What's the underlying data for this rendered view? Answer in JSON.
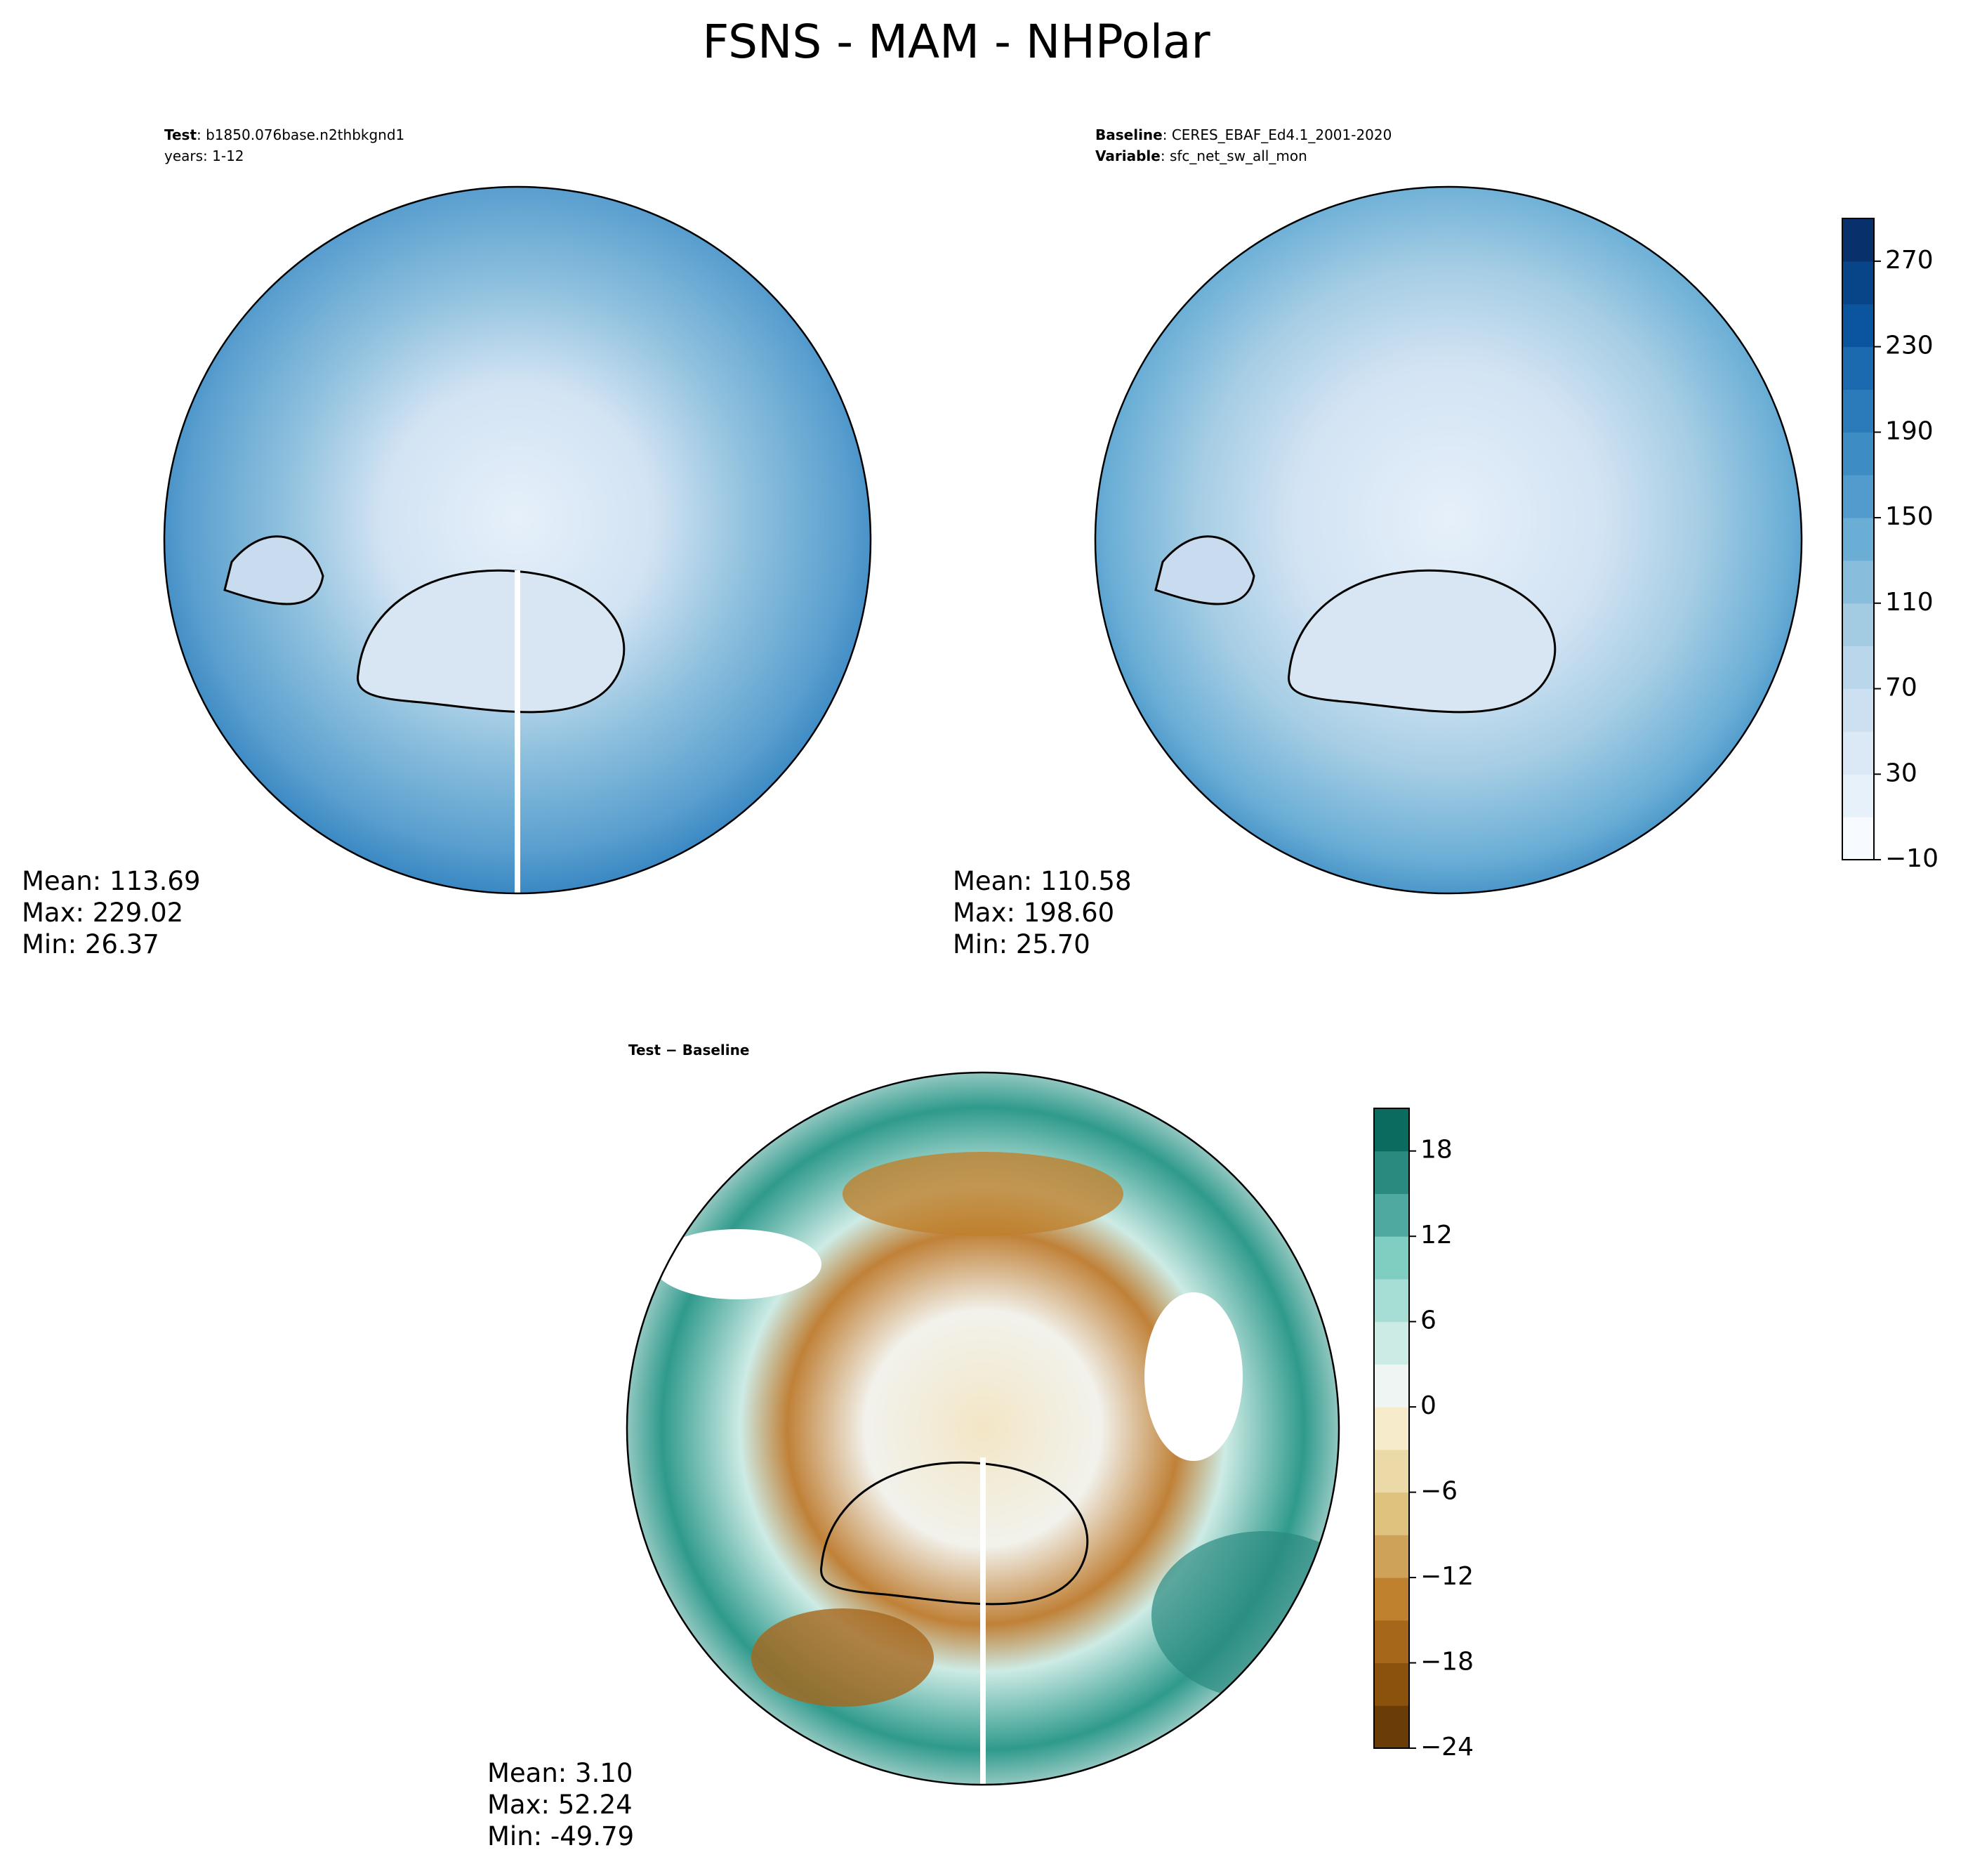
{
  "title": "FSNS - MAM - NHPolar",
  "panels": [
    {
      "header": [
        {
          "bold": "Test",
          "text": ": b1850.076base.n2thbkgnd1"
        },
        {
          "text": "years: 1-12"
        }
      ],
      "stats": [
        "Mean: 113.69",
        "Max: 229.02",
        "Min: 26.37"
      ]
    },
    {
      "header": [
        {
          "bold": "Baseline",
          "text": ": CERES_EBAF_Ed4.1_2001-2020"
        },
        {
          "bold": "Variable",
          "text": ": sfc_net_sw_all_mon"
        }
      ],
      "stats": [
        "Mean: 110.58",
        "Max: 198.60",
        "Min: 25.70"
      ]
    },
    {
      "header": [
        {
          "bold": "Test − Baseline"
        }
      ],
      "stats": [
        "Mean:  3.10",
        "Max: 52.24",
        "Min: -49.79"
      ]
    }
  ],
  "colorbars": [
    {
      "lim": [
        -10,
        290
      ],
      "ticks": [
        {
          "value": -10,
          "label": "−10"
        },
        30,
        70,
        110,
        150,
        190,
        230,
        270
      ],
      "colors": [
        "#f7fbff",
        "#e7f1fa",
        "#dbe9f6",
        "#cde0f1",
        "#bad6eb",
        "#a3cce3",
        "#88bedc",
        "#6aaed6",
        "#519ccc",
        "#3d8dc4",
        "#2b7bba",
        "#1b69af",
        "#0b559f",
        "#084488",
        "#08306b"
      ]
    },
    {
      "lim": [
        -24,
        21
      ],
      "ticks": [
        {
          "value": -24,
          "label": "−24"
        },
        {
          "value": -18,
          "label": "−18"
        },
        {
          "value": -12,
          "label": "−12"
        },
        {
          "value": -6,
          "label": "−6"
        },
        0,
        6,
        12,
        18
      ],
      "colors": [
        "#6a3d08",
        "#8a520c",
        "#a6671b",
        "#bf812d",
        "#cfa25a",
        "#dfc27d",
        "#ecd9a8",
        "#f6ebcb",
        "#eef5f3",
        "#cdebe5",
        "#a6ddd4",
        "#80cdc1",
        "#4fa9a0",
        "#2a8a80",
        "#0b6b5e"
      ]
    }
  ]
}
